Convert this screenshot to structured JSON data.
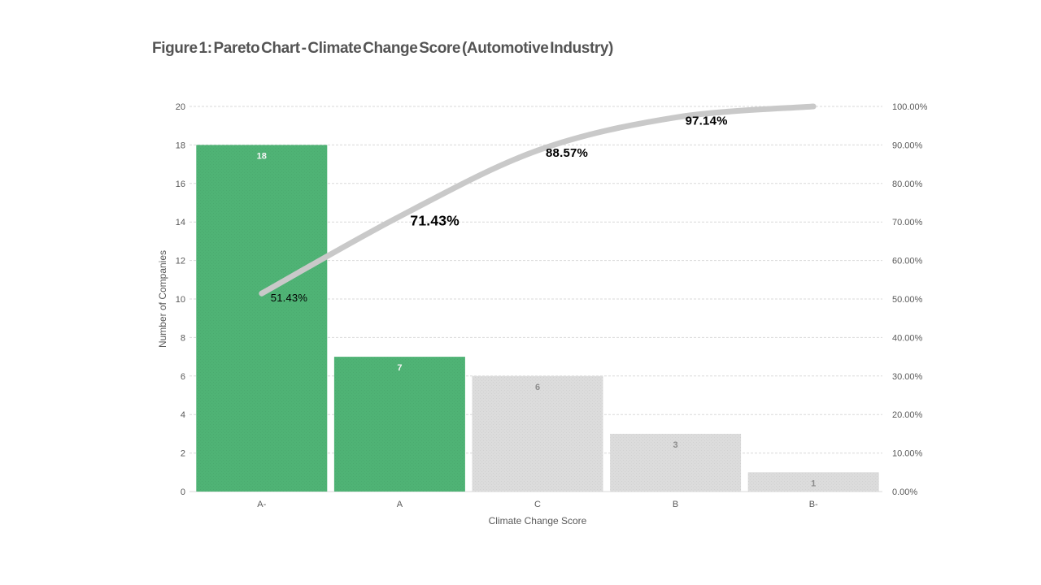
{
  "page": {
    "background": "#ffffff"
  },
  "chart_data": {
    "type": "pareto (bar + cumulative line)",
    "title": "Figure 1: Pareto Chart - Climate Change Score (Automotive Industry)",
    "categories": [
      "A-",
      "A",
      "C",
      "B",
      "B-"
    ],
    "series": [
      {
        "name": "Number of Companies",
        "type": "bar",
        "axis": "left",
        "values": [
          18,
          7,
          6,
          3,
          1
        ],
        "bar_colors": [
          "#4fb375",
          "#4fb375",
          "#dcdcdc",
          "#dcdcdc",
          "#dcdcdc"
        ],
        "value_labels": [
          "18",
          "7",
          "6",
          "3",
          "1"
        ],
        "value_label_colors": [
          "#f5f5f5",
          "#f5f5f5",
          "#8c8c8c",
          "#8c8c8c",
          "#8c8c8c"
        ]
      },
      {
        "name": "Cumulative Percentage",
        "type": "line",
        "axis": "right",
        "values": [
          51.43,
          71.43,
          88.57,
          97.14,
          100.0
        ],
        "point_labels": [
          "51.43%",
          "71.43%",
          "88.57%",
          "97.14%",
          ""
        ],
        "color": "#c9c9c9"
      }
    ],
    "xlabel": "Climate Change Score",
    "ylabel": "Number of Companies",
    "axis_left": {
      "min": 0,
      "max": 20,
      "ticks": [
        "0",
        "2",
        "4",
        "6",
        "8",
        "10",
        "12",
        "14",
        "16",
        "18",
        "20"
      ]
    },
    "axis_right": {
      "min": 0,
      "max": 100,
      "ticks": [
        "0.00%",
        "10.00%",
        "20.00%",
        "30.00%",
        "40.00%",
        "50.00%",
        "60.00%",
        "70.00%",
        "80.00%",
        "90.00%",
        "100.00%"
      ]
    },
    "grid": true,
    "legend": "none",
    "text_color": "#595959",
    "grid_color": "#d9d9d9",
    "label_color": "#000000"
  }
}
